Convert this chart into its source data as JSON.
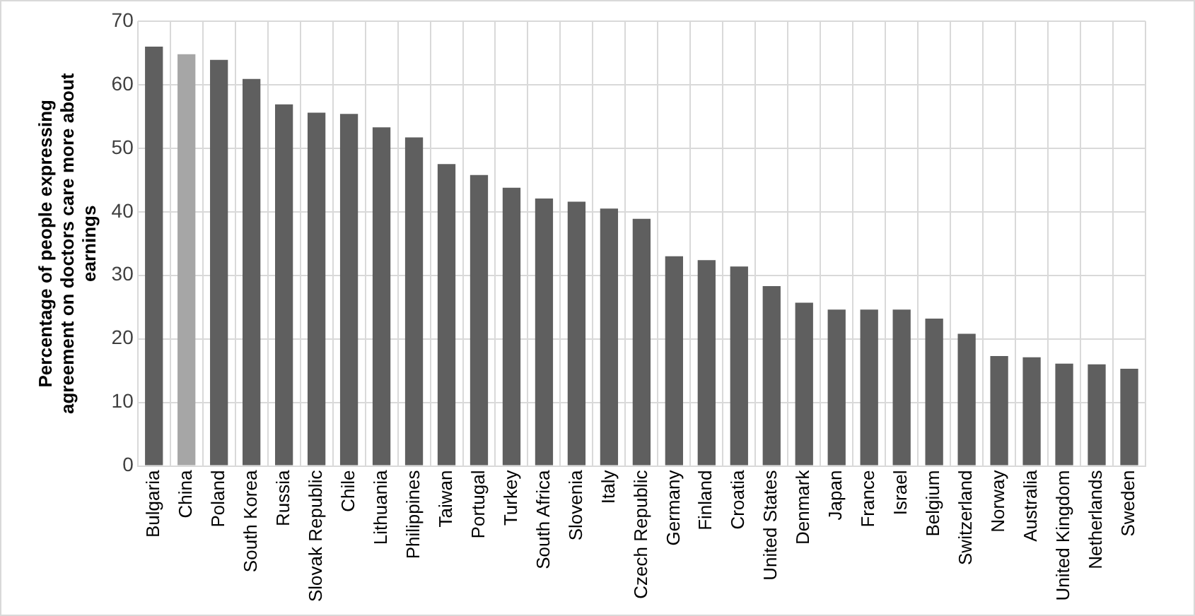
{
  "chart_data": {
    "type": "bar",
    "ylabel": "Percentage of people expressing agreement on doctors care more about earnings",
    "categories": [
      "Bulgaria",
      "China",
      "Poland",
      "South Korea",
      "Russia",
      "Slovak Republic",
      "Chile",
      "Lithuania",
      "Philippines",
      "Taiwan",
      "Portugal",
      "Turkey",
      "South Africa",
      "Slovenia",
      "Italy",
      "Czech Republic",
      "Germany",
      "Finland",
      "Croatia",
      "United States",
      "Denmark",
      "Japan",
      "France",
      "Israel",
      "Belgium",
      "Switzerland",
      "Norway",
      "Australia",
      "United Kingdom",
      "Netherlands",
      "Sweden"
    ],
    "values": [
      66,
      64.8,
      63.9,
      60.9,
      56.9,
      55.6,
      55.4,
      53.3,
      51.7,
      47.5,
      45.8,
      43.8,
      42.1,
      41.6,
      40.5,
      38.9,
      33.0,
      32.4,
      31.4,
      28.3,
      25.7,
      24.6,
      24.6,
      24.6,
      23.2,
      20.8,
      17.3,
      17.1,
      16.1,
      16.0,
      15.3
    ],
    "colors": [
      "#5f5f5f",
      "#a6a6a6",
      "#5f5f5f",
      "#5f5f5f",
      "#5f5f5f",
      "#5f5f5f",
      "#5f5f5f",
      "#5f5f5f",
      "#5f5f5f",
      "#5f5f5f",
      "#5f5f5f",
      "#5f5f5f",
      "#5f5f5f",
      "#5f5f5f",
      "#5f5f5f",
      "#5f5f5f",
      "#5f5f5f",
      "#5f5f5f",
      "#5f5f5f",
      "#5f5f5f",
      "#5f5f5f",
      "#5f5f5f",
      "#5f5f5f",
      "#5f5f5f",
      "#5f5f5f",
      "#5f5f5f",
      "#5f5f5f",
      "#5f5f5f",
      "#5f5f5f",
      "#5f5f5f",
      "#5f5f5f"
    ],
    "ylim": [
      0,
      70
    ],
    "yticks": [
      0,
      10,
      20,
      30,
      40,
      50,
      60,
      70
    ],
    "grid": true
  }
}
